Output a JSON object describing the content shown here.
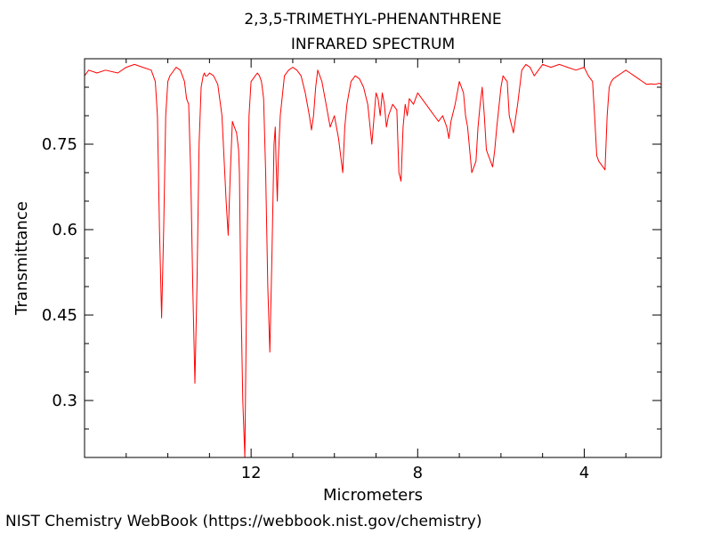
{
  "chart_data": {
    "type": "line",
    "title": "2,3,5-TRIMETHYL-PHENANTHRENE",
    "subtitle": "INFRARED SPECTRUM",
    "xlabel": "Micrometers",
    "ylabel": "Transmittance",
    "xlim": [
      16,
      2.15
    ],
    "ylim": [
      0.2,
      0.9
    ],
    "x_ticks": [
      12,
      8,
      4
    ],
    "y_ticks": [
      0.75,
      0.6,
      0.45,
      0.3
    ],
    "grid": false,
    "legend": "none",
    "series": [
      {
        "color": "#ff0000",
        "x": [
          16.0,
          15.9,
          15.7,
          15.5,
          15.2,
          15.0,
          14.8,
          14.6,
          14.4,
          14.3,
          14.25,
          14.2,
          14.15,
          14.1,
          14.05,
          14.0,
          13.95,
          13.9,
          13.8,
          13.7,
          13.6,
          13.55,
          13.5,
          13.45,
          13.4,
          13.35,
          13.3,
          13.25,
          13.2,
          13.15,
          13.12,
          13.1,
          13.05,
          13.0,
          12.9,
          12.8,
          12.7,
          12.6,
          12.55,
          12.5,
          12.45,
          12.4,
          12.35,
          12.3,
          12.28,
          12.25,
          12.2,
          12.15,
          12.1,
          12.05,
          12.0,
          11.95,
          11.9,
          11.85,
          11.8,
          11.75,
          11.7,
          11.65,
          11.6,
          11.55,
          11.5,
          11.45,
          11.42,
          11.4,
          11.37,
          11.35,
          11.3,
          11.2,
          11.1,
          11.0,
          10.9,
          10.8,
          10.7,
          10.6,
          10.55,
          10.5,
          10.45,
          10.4,
          10.3,
          10.2,
          10.1,
          10.0,
          9.9,
          9.8,
          9.75,
          9.7,
          9.65,
          9.6,
          9.5,
          9.4,
          9.3,
          9.2,
          9.1,
          9.0,
          8.95,
          8.9,
          8.85,
          8.8,
          8.75,
          8.7,
          8.6,
          8.5,
          8.45,
          8.4,
          8.35,
          8.3,
          8.25,
          8.2,
          8.1,
          8.0,
          7.9,
          7.8,
          7.7,
          7.6,
          7.5,
          7.4,
          7.3,
          7.25,
          7.2,
          7.1,
          7.0,
          6.9,
          6.85,
          6.8,
          6.7,
          6.65,
          6.6,
          6.55,
          6.5,
          6.45,
          6.4,
          6.35,
          6.3,
          6.25,
          6.2,
          6.15,
          6.1,
          6.0,
          5.95,
          5.9,
          5.85,
          5.8,
          5.7,
          5.6,
          5.5,
          5.4,
          5.3,
          5.2,
          5.0,
          4.8,
          4.6,
          4.4,
          4.2,
          4.0,
          3.9,
          3.8,
          3.75,
          3.7,
          3.65,
          3.6,
          3.55,
          3.5,
          3.45,
          3.4,
          3.35,
          3.3,
          3.2,
          3.1,
          3.0,
          2.9,
          2.8,
          2.7,
          2.6,
          2.5,
          2.4,
          2.3,
          2.2,
          2.15
        ],
        "y": [
          0.87,
          0.88,
          0.875,
          0.88,
          0.875,
          0.885,
          0.89,
          0.885,
          0.88,
          0.86,
          0.8,
          0.6,
          0.445,
          0.6,
          0.8,
          0.86,
          0.87,
          0.875,
          0.885,
          0.88,
          0.86,
          0.83,
          0.82,
          0.7,
          0.5,
          0.33,
          0.5,
          0.75,
          0.85,
          0.87,
          0.875,
          0.87,
          0.87,
          0.875,
          0.87,
          0.855,
          0.8,
          0.65,
          0.59,
          0.7,
          0.79,
          0.78,
          0.77,
          0.74,
          0.7,
          0.5,
          0.3,
          0.2,
          0.55,
          0.8,
          0.86,
          0.865,
          0.87,
          0.875,
          0.87,
          0.86,
          0.83,
          0.7,
          0.5,
          0.385,
          0.55,
          0.75,
          0.78,
          0.72,
          0.65,
          0.72,
          0.8,
          0.87,
          0.88,
          0.885,
          0.88,
          0.87,
          0.84,
          0.8,
          0.775,
          0.8,
          0.85,
          0.88,
          0.86,
          0.82,
          0.78,
          0.8,
          0.76,
          0.7,
          0.78,
          0.82,
          0.84,
          0.86,
          0.87,
          0.865,
          0.85,
          0.82,
          0.75,
          0.84,
          0.83,
          0.8,
          0.84,
          0.82,
          0.78,
          0.8,
          0.82,
          0.81,
          0.7,
          0.685,
          0.78,
          0.82,
          0.8,
          0.83,
          0.82,
          0.84,
          0.83,
          0.82,
          0.81,
          0.8,
          0.79,
          0.8,
          0.78,
          0.76,
          0.79,
          0.82,
          0.86,
          0.84,
          0.8,
          0.78,
          0.7,
          0.71,
          0.72,
          0.78,
          0.82,
          0.85,
          0.8,
          0.74,
          0.73,
          0.72,
          0.71,
          0.74,
          0.78,
          0.85,
          0.87,
          0.865,
          0.86,
          0.8,
          0.77,
          0.82,
          0.88,
          0.89,
          0.885,
          0.87,
          0.89,
          0.885,
          0.89,
          0.885,
          0.88,
          0.885,
          0.87,
          0.86,
          0.8,
          0.73,
          0.72,
          0.715,
          0.71,
          0.705,
          0.8,
          0.85,
          0.86,
          0.865,
          0.87,
          0.875,
          0.88,
          0.875,
          0.87,
          0.865,
          0.86,
          0.855,
          0.856,
          0.855,
          0.857,
          0.855
        ]
      }
    ]
  },
  "footer": {
    "credit": "NIST Chemistry WebBook (https://webbook.nist.gov/chemistry)"
  }
}
